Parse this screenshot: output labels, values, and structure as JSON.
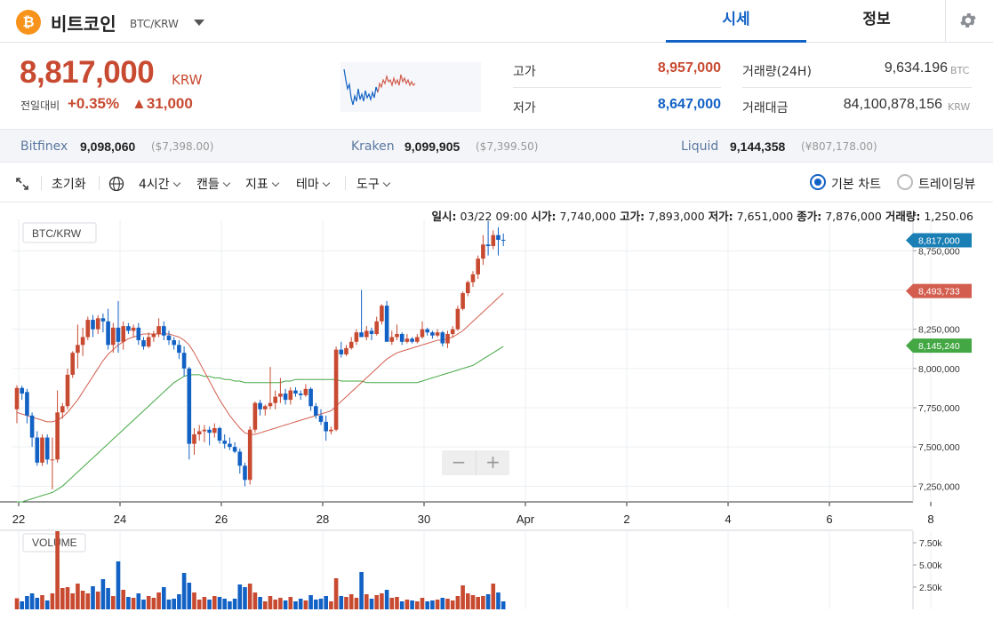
{
  "header": {
    "coin_symbol_glyph": "₿",
    "coin_name": "비트코인",
    "pair": "BTC/KRW",
    "tabs": [
      {
        "label": "시세",
        "active": true
      },
      {
        "label": "정보",
        "active": false
      }
    ],
    "icons": {
      "coin": "bitcoin-icon",
      "dropdown": "caret-down-icon",
      "settings": "gear-icon"
    }
  },
  "price": {
    "current": "8,817,000",
    "currency": "KRW",
    "change_label": "전일대비",
    "change_pct": "+0.35%",
    "change_abs": "▲31,000",
    "high_label": "고가",
    "high_value": "8,957,000",
    "low_label": "저가",
    "low_value": "8,647,000",
    "volume_label": "거래량(24H)",
    "volume_value": "9,634.196",
    "volume_unit": "BTC",
    "amount_label": "거래대금",
    "amount_value": "84,100,878,156",
    "amount_unit": "KRW",
    "colors": {
      "up": "#c84a31",
      "down": "#1261c4"
    }
  },
  "exchanges": [
    {
      "name": "Bitfinex",
      "price": "9,098,060",
      "usd": "($7,398.00)"
    },
    {
      "name": "Kraken",
      "price": "9,099,905",
      "usd": "($7,399.50)"
    },
    {
      "name": "Liquid",
      "price": "9,144,358",
      "usd": "(¥807,178.00)"
    }
  ],
  "toolbar": {
    "reset": "초기화",
    "interval": "4시간",
    "candle": "캔들",
    "indicator": "지표",
    "theme": "테마",
    "tools": "도구",
    "basic_chart": "기본 차트",
    "tradingview": "트레이딩뷰",
    "selected_chart": "basic",
    "icons": {
      "expand": "expand-icon",
      "globe": "globe-icon"
    }
  },
  "ohlc": {
    "date_label": "일시:",
    "date": "03/22 09:00",
    "open_label": "시가:",
    "open": "7,740,000",
    "high_label": "고가:",
    "high": "7,893,000",
    "low_label": "저가:",
    "low": "7,651,000",
    "close_label": "종가:",
    "close": "7,876,000",
    "volume_label": "거래량:",
    "volume": "1,250.06"
  },
  "chart_data": {
    "type": "candlestick",
    "symbol_label": "BTC/KRW",
    "volume_label": "VOLUME",
    "x_ticks": [
      "22",
      "24",
      "26",
      "28",
      "30",
      "Apr",
      "2",
      "4",
      "6",
      "8"
    ],
    "y_ticks": [
      "8,750,000",
      "8,500,000",
      "8,250,000",
      "8,000,000",
      "7,750,000",
      "7,500,000",
      "7,250,000"
    ],
    "y_tick_values": [
      8750000,
      8500000,
      8250000,
      8000000,
      7750000,
      7500000,
      7250000
    ],
    "ylim": [
      7150000,
      8950000
    ],
    "price_tags": [
      {
        "label": "8,817,000",
        "value": 8817000,
        "color": "#1a7fb5"
      },
      {
        "label": "8,493,733",
        "value": 8493733,
        "color": "#d35e4f"
      },
      {
        "label": "8,145,240",
        "value": 8145240,
        "color": "#43a843"
      }
    ],
    "volume_ticks": [
      "7.50k",
      "5.00k",
      "2.50k"
    ],
    "volume_tick_values": [
      7500,
      5000,
      2500
    ],
    "volume_max": 8800,
    "ma_short_color": "#d35e4f",
    "ma_long_color": "#43a843",
    "zoom_out": "−",
    "zoom_in": "+",
    "candles": [
      [
        7740000,
        7893000,
        7651000,
        7876000,
        1250
      ],
      [
        7876000,
        7890000,
        7800000,
        7840000,
        900
      ],
      [
        7850000,
        7870000,
        7650000,
        7700000,
        1500
      ],
      [
        7700000,
        7720000,
        7500000,
        7560000,
        1800
      ],
      [
        7560000,
        7600000,
        7380000,
        7400000,
        1300
      ],
      [
        7400000,
        7580000,
        7380000,
        7560000,
        1600
      ],
      [
        7560000,
        7580000,
        7390000,
        7420000,
        1000
      ],
      [
        7420000,
        7560000,
        7230000,
        7420000,
        1800
      ],
      [
        7420000,
        7860000,
        7400000,
        7720000,
        8800
      ],
      [
        7720000,
        7780000,
        7680000,
        7760000,
        2400
      ],
      [
        7760000,
        8000000,
        7740000,
        7960000,
        2500
      ],
      [
        7960000,
        8110000,
        7940000,
        8100000,
        1800
      ],
      [
        8100000,
        8280000,
        8000000,
        8150000,
        2900
      ],
      [
        8150000,
        8260000,
        8080000,
        8200000,
        2100
      ],
      [
        8200000,
        8330000,
        8180000,
        8310000,
        1800
      ],
      [
        8310000,
        8340000,
        8200000,
        8250000,
        2600
      ],
      [
        8250000,
        8340000,
        8220000,
        8320000,
        2000
      ],
      [
        8320000,
        8350000,
        8230000,
        8300000,
        3400
      ],
      [
        8300000,
        8380000,
        8120000,
        8150000,
        2400
      ],
      [
        8150000,
        8290000,
        8100000,
        8260000,
        1500
      ],
      [
        8260000,
        8430000,
        8100000,
        8170000,
        5400
      ],
      [
        8170000,
        8300000,
        8120000,
        8270000,
        2200
      ],
      [
        8270000,
        8290000,
        8220000,
        8240000,
        1400
      ],
      [
        8240000,
        8280000,
        8200000,
        8260000,
        1300
      ],
      [
        8260000,
        8290000,
        8150000,
        8180000,
        1800
      ],
      [
        8180000,
        8200000,
        8120000,
        8140000,
        1100
      ],
      [
        8140000,
        8230000,
        8130000,
        8200000,
        1500
      ],
      [
        8200000,
        8240000,
        8170000,
        8220000,
        1300
      ],
      [
        8220000,
        8320000,
        8200000,
        8270000,
        1900
      ],
      [
        8270000,
        8300000,
        8180000,
        8210000,
        2500
      ],
      [
        8210000,
        8240000,
        8150000,
        8180000,
        1100
      ],
      [
        8180000,
        8200000,
        8120000,
        8150000,
        1200
      ],
      [
        8150000,
        8180000,
        8060000,
        8100000,
        1700
      ],
      [
        8100000,
        8140000,
        7950000,
        8000000,
        4100
      ],
      [
        8000000,
        8010000,
        7420000,
        7520000,
        3000
      ],
      [
        7520000,
        7620000,
        7450000,
        7580000,
        1900
      ],
      [
        7580000,
        7640000,
        7540000,
        7600000,
        1100
      ],
      [
        7600000,
        7640000,
        7530000,
        7610000,
        1400
      ],
      [
        7610000,
        7630000,
        7510000,
        7590000,
        1100
      ],
      [
        7590000,
        7650000,
        7560000,
        7620000,
        1500
      ],
      [
        7620000,
        7630000,
        7520000,
        7540000,
        1400
      ],
      [
        7540000,
        7580000,
        7490000,
        7520000,
        1200
      ],
      [
        7520000,
        7560000,
        7480000,
        7500000,
        900
      ],
      [
        7500000,
        7530000,
        7460000,
        7470000,
        1200
      ],
      [
        7470000,
        7490000,
        7330000,
        7380000,
        2800
      ],
      [
        7380000,
        7400000,
        7250000,
        7290000,
        2500
      ],
      [
        7290000,
        7630000,
        7260000,
        7610000,
        2900
      ],
      [
        7610000,
        7790000,
        7590000,
        7780000,
        1900
      ],
      [
        7780000,
        7800000,
        7700000,
        7740000,
        1400
      ],
      [
        7740000,
        7770000,
        7700000,
        7760000,
        900
      ],
      [
        7760000,
        8010000,
        7740000,
        7780000,
        1500
      ],
      [
        7780000,
        7860000,
        7740000,
        7820000,
        1100
      ],
      [
        7820000,
        7940000,
        7780000,
        7840000,
        1300
      ],
      [
        7840000,
        7870000,
        7770000,
        7800000,
        1000
      ],
      [
        7800000,
        7880000,
        7770000,
        7860000,
        1400
      ],
      [
        7860000,
        7880000,
        7820000,
        7840000,
        900
      ],
      [
        7840000,
        7860000,
        7800000,
        7830000,
        1200
      ],
      [
        7830000,
        7900000,
        7820000,
        7870000,
        1000
      ],
      [
        7870000,
        7880000,
        7730000,
        7760000,
        1600
      ],
      [
        7760000,
        7780000,
        7680000,
        7700000,
        1100
      ],
      [
        7700000,
        7740000,
        7640000,
        7660000,
        1200
      ],
      [
        7660000,
        7700000,
        7540000,
        7600000,
        1500
      ],
      [
        7600000,
        7630000,
        7580000,
        7610000,
        900
      ],
      [
        7610000,
        8140000,
        7600000,
        8120000,
        3500
      ],
      [
        8120000,
        8170000,
        8070000,
        8090000,
        1500
      ],
      [
        8090000,
        8150000,
        8080000,
        8130000,
        1400
      ],
      [
        8130000,
        8200000,
        8120000,
        8170000,
        1700
      ],
      [
        8170000,
        8250000,
        8150000,
        8230000,
        1300
      ],
      [
        8230000,
        8500000,
        8200000,
        8200000,
        4200
      ],
      [
        8200000,
        8270000,
        8180000,
        8240000,
        1700
      ],
      [
        8240000,
        8260000,
        8180000,
        8220000,
        1200
      ],
      [
        8220000,
        8330000,
        8210000,
        8300000,
        1600
      ],
      [
        8300000,
        8410000,
        8280000,
        8400000,
        1800
      ],
      [
        8400000,
        8430000,
        8180000,
        8170000,
        2200
      ],
      [
        8170000,
        8240000,
        8150000,
        8200000,
        1300
      ],
      [
        8200000,
        8280000,
        8180000,
        8220000,
        1400
      ],
      [
        8220000,
        8230000,
        8150000,
        8170000,
        900
      ],
      [
        8170000,
        8220000,
        8160000,
        8190000,
        1100
      ],
      [
        8190000,
        8200000,
        8160000,
        8170000,
        1000
      ],
      [
        8170000,
        8220000,
        8160000,
        8200000,
        900
      ],
      [
        8200000,
        8300000,
        8190000,
        8250000,
        1300
      ],
      [
        8250000,
        8260000,
        8210000,
        8230000,
        900
      ],
      [
        8230000,
        8240000,
        8190000,
        8210000,
        1000
      ],
      [
        8210000,
        8250000,
        8200000,
        8230000,
        1100
      ],
      [
        8230000,
        8240000,
        8140000,
        8160000,
        1300
      ],
      [
        8160000,
        8240000,
        8130000,
        8220000,
        1200
      ],
      [
        8220000,
        8270000,
        8200000,
        8250000,
        1000
      ],
      [
        8250000,
        8400000,
        8240000,
        8380000,
        1500
      ],
      [
        8380000,
        8490000,
        8370000,
        8480000,
        2700
      ],
      [
        8480000,
        8560000,
        8460000,
        8550000,
        1800
      ],
      [
        8550000,
        8620000,
        8520000,
        8600000,
        1600
      ],
      [
        8600000,
        8720000,
        8570000,
        8700000,
        1400
      ],
      [
        8700000,
        8850000,
        8660000,
        8790000,
        1500
      ],
      [
        8790000,
        8940000,
        8720000,
        8780000,
        1700
      ],
      [
        8780000,
        8880000,
        8760000,
        8850000,
        2900
      ],
      [
        8850000,
        8900000,
        8720000,
        8820000,
        1900
      ],
      [
        8820000,
        8860000,
        8780000,
        8817000,
        900
      ]
    ],
    "ma_short": [
      7720000,
      7710000,
      7700000,
      7690000,
      7680000,
      7670000,
      7660000,
      7660000,
      7670000,
      7690000,
      7720000,
      7760000,
      7800000,
      7850000,
      7900000,
      7950000,
      8000000,
      8050000,
      8090000,
      8120000,
      8150000,
      8170000,
      8190000,
      8200000,
      8210000,
      8220000,
      8220000,
      8220000,
      8220000,
      8220000,
      8220000,
      8210000,
      8200000,
      8180000,
      8150000,
      8100000,
      8040000,
      7980000,
      7920000,
      7860000,
      7800000,
      7750000,
      7700000,
      7660000,
      7620000,
      7590000,
      7580000,
      7580000,
      7590000,
      7600000,
      7610000,
      7620000,
      7630000,
      7640000,
      7650000,
      7660000,
      7670000,
      7680000,
      7690000,
      7700000,
      7710000,
      7720000,
      7730000,
      7760000,
      7790000,
      7820000,
      7850000,
      7880000,
      7910000,
      7940000,
      7970000,
      8000000,
      8030000,
      8060000,
      8080000,
      8100000,
      8110000,
      8120000,
      8130000,
      8140000,
      8150000,
      8160000,
      8170000,
      8180000,
      8180000,
      8190000,
      8200000,
      8220000,
      8240000,
      8270000,
      8300000,
      8330000,
      8360000,
      8390000,
      8420000,
      8450000,
      8480000
    ],
    "ma_long": [
      7150000,
      7150000,
      7160000,
      7170000,
      7180000,
      7190000,
      7200000,
      7210000,
      7230000,
      7250000,
      7280000,
      7310000,
      7340000,
      7370000,
      7400000,
      7430000,
      7460000,
      7490000,
      7520000,
      7550000,
      7580000,
      7610000,
      7640000,
      7670000,
      7700000,
      7730000,
      7760000,
      7790000,
      7820000,
      7850000,
      7880000,
      7910000,
      7930000,
      7950000,
      7960000,
      7960000,
      7960000,
      7950000,
      7950000,
      7940000,
      7940000,
      7930000,
      7930000,
      7920000,
      7920000,
      7910000,
      7910000,
      7910000,
      7910000,
      7910000,
      7910000,
      7910000,
      7910000,
      7920000,
      7920000,
      7930000,
      7930000,
      7930000,
      7930000,
      7930000,
      7930000,
      7930000,
      7930000,
      7930000,
      7920000,
      7920000,
      7920000,
      7920000,
      7920000,
      7910000,
      7910000,
      7910000,
      7910000,
      7910000,
      7910000,
      7910000,
      7910000,
      7910000,
      7910000,
      7910000,
      7920000,
      7930000,
      7940000,
      7950000,
      7960000,
      7970000,
      7980000,
      7990000,
      8000000,
      8010000,
      8020000,
      8040000,
      8060000,
      8080000,
      8100000,
      8120000,
      8140000
    ]
  }
}
